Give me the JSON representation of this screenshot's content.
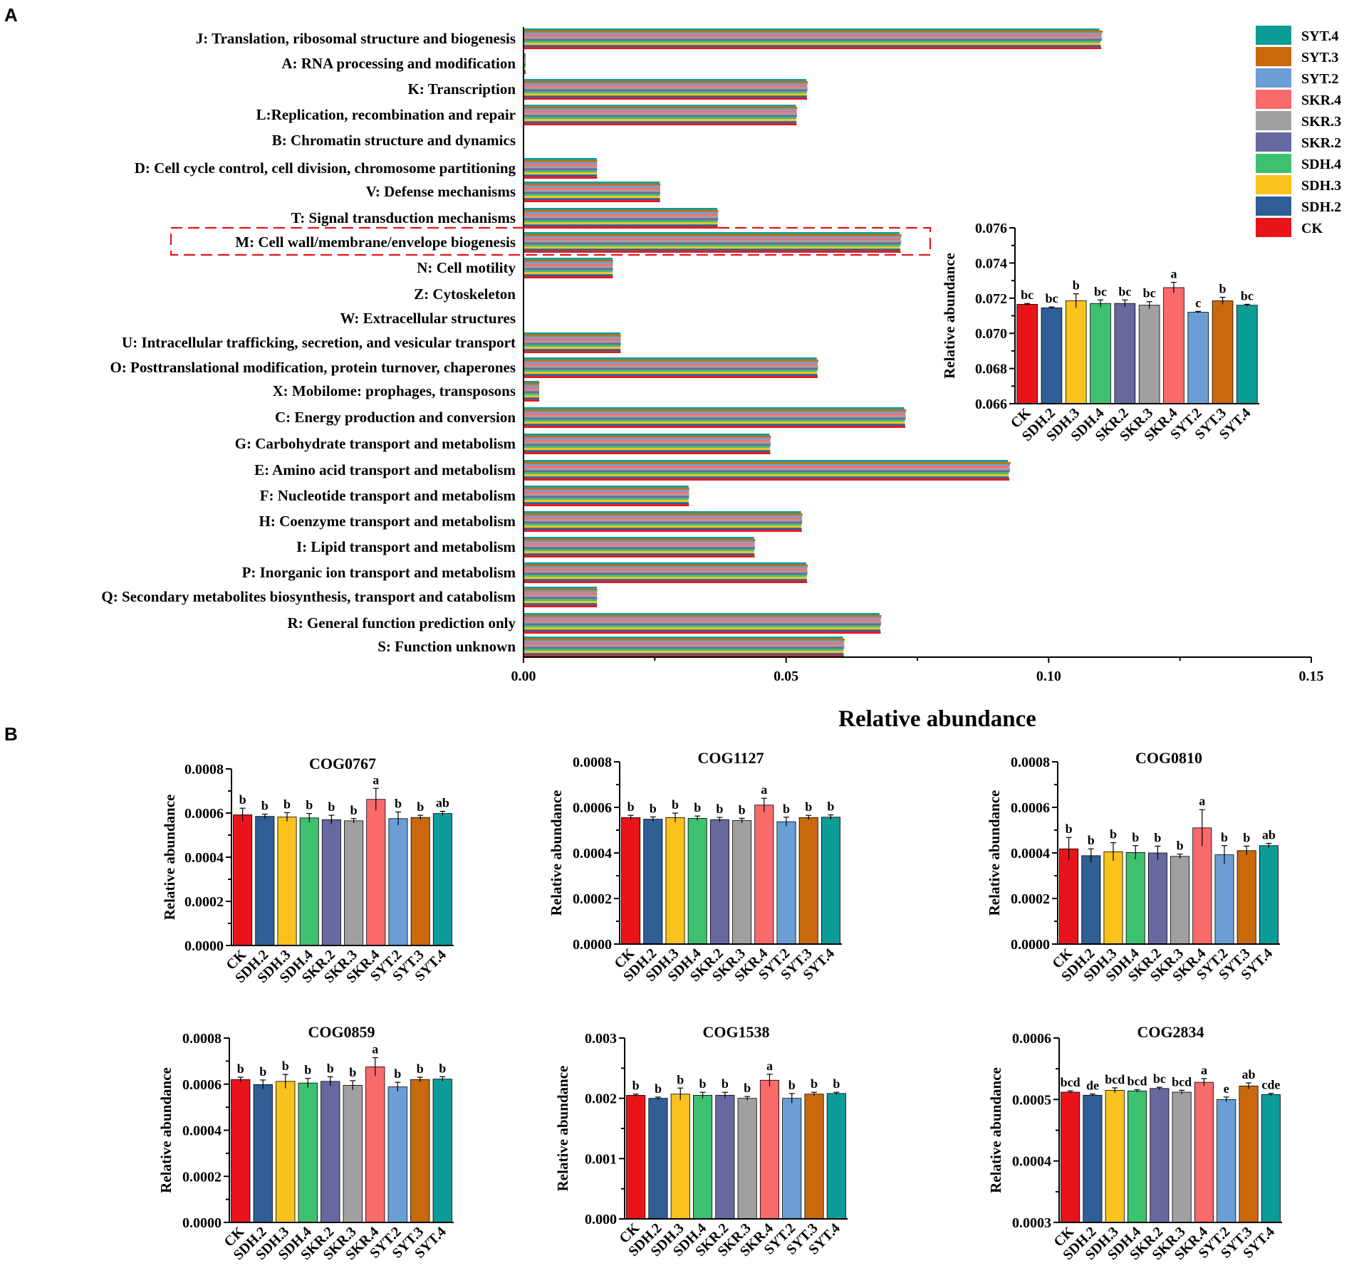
{
  "figure": {
    "label_a": "A",
    "label_b": "B"
  },
  "groups": [
    "CK",
    "SDH.2",
    "SDH.3",
    "SDH.4",
    "SKR.2",
    "SKR.3",
    "SKR.4",
    "SYT.2",
    "SYT.3",
    "SYT.4"
  ],
  "colors": {
    "CK": "#e8141a",
    "SDH.2": "#2f5f94",
    "SDH.3": "#f9c21c",
    "SDH.4": "#3ec16f",
    "SKR.2": "#6868a0",
    "SKR.3": "#a0a0a0",
    "SKR.4": "#f96a6a",
    "SYT.2": "#6a9ed4",
    "SYT.3": "#c9690c",
    "SYT.4": "#0c9c98"
  },
  "legend": [
    "SYT.4",
    "SYT.3",
    "SYT.2",
    "SKR.4",
    "SKR.3",
    "SKR.2",
    "SDH.4",
    "SDH.3",
    "SDH.2",
    "CK"
  ],
  "chart_data": [
    {
      "id": "panelA-main",
      "type": "bar",
      "orientation": "horizontal",
      "xlabel": "Relative abundance",
      "xlim": [
        0,
        0.15
      ],
      "xticks": [
        "0.00",
        "0.05",
        "0.10",
        "0.15"
      ],
      "highlighted_category": "M: Cell wall/membrane/envelope biogenesis",
      "categories": [
        "J: Translation, ribosomal structure and biogenesis",
        "A: RNA processing and modification",
        "K: Transcription",
        "L:Replication, recombination and repair",
        "B: Chromatin structure and dynamics",
        "D: Cell cycle control, cell division, chromosome partitioning",
        "V: Defense mechanisms",
        "T: Signal transduction mechanisms",
        "M: Cell wall/membrane/envelope biogenesis",
        "N: Cell motility",
        "Z: Cytoskeleton",
        "W: Extracellular structures",
        "U: Intracellular trafficking, secretion, and vesicular transport",
        "O: Posttranslational modification, protein turnover, chaperones",
        "X: Mobilome: prophages, transposons",
        "C: Energy production and conversion",
        "G: Carbohydrate transport and metabolism",
        "E: Amino acid transport and metabolism",
        "F: Nucleotide transport and metabolism",
        "H: Coenzyme transport and metabolism",
        "I: Lipid transport and metabolism",
        "P: Inorganic ion transport and metabolism",
        "Q: Secondary metabolites biosynthesis, transport and catabolism",
        "R: General function prediction only",
        "S: Function unknown"
      ],
      "base_values": [
        0.11,
        0.0004,
        0.054,
        0.052,
        0.0,
        0.014,
        0.026,
        0.037,
        0.0718,
        0.017,
        0.0,
        0.0,
        0.0185,
        0.056,
        0.003,
        0.0727,
        0.047,
        0.0925,
        0.0315,
        0.053,
        0.044,
        0.054,
        0.014,
        0.068,
        0.061
      ]
    },
    {
      "id": "panelA-inset",
      "type": "bar",
      "categories": [
        "CK",
        "SDH.2",
        "SDH.3",
        "SDH.4",
        "SKR.2",
        "SKR.3",
        "SKR.4",
        "SYT.2",
        "SYT.3",
        "SYT.4"
      ],
      "values": [
        0.07165,
        0.07145,
        0.07185,
        0.0717,
        0.0717,
        0.0716,
        0.0726,
        0.0712,
        0.07185,
        0.0716
      ],
      "errors": [
        5e-05,
        5e-05,
        0.0004,
        0.0002,
        0.0002,
        0.0002,
        0.0003,
        5e-05,
        0.0002,
        5e-05
      ],
      "labels": [
        "bc",
        "bc",
        "b",
        "bc",
        "bc",
        "bc",
        "a",
        "c",
        "b",
        "bc"
      ],
      "ylabel": "Relative abundance",
      "ylim": [
        0.066,
        0.076
      ],
      "yticks": [
        "0.066",
        "0.068",
        "0.070",
        "0.072",
        "0.074",
        "0.076"
      ]
    },
    {
      "id": "COG0767",
      "type": "bar",
      "title": "COG0767",
      "categories": [
        "CK",
        "SDH.2",
        "SDH.3",
        "SDH.4",
        "SKR.2",
        "SKR.3",
        "SKR.4",
        "SYT.2",
        "SYT.3",
        "SYT.4"
      ],
      "values": [
        0.000592,
        0.000585,
        0.000582,
        0.000578,
        0.00057,
        0.000565,
        0.000662,
        0.000575,
        0.00058,
        0.000598
      ],
      "errors": [
        3e-05,
        1e-05,
        2e-05,
        2e-05,
        2e-05,
        1e-05,
        5e-05,
        3e-05,
        1e-05,
        1e-05
      ],
      "labels": [
        "b",
        "b",
        "b",
        "b",
        "b",
        "b",
        "a",
        "b",
        "b",
        "ab"
      ],
      "ylabel": "Relative abundance",
      "ylim": [
        0,
        0.0008
      ],
      "yticks": [
        "0.0000",
        "0.0002",
        "0.0004",
        "0.0006",
        "0.0008"
      ]
    },
    {
      "id": "COG1127",
      "type": "bar",
      "title": "COG1127",
      "categories": [
        "CK",
        "SDH.2",
        "SDH.3",
        "SDH.4",
        "SKR.2",
        "SKR.3",
        "SKR.4",
        "SYT.2",
        "SYT.3",
        "SYT.4"
      ],
      "values": [
        0.000555,
        0.000548,
        0.000555,
        0.000552,
        0.000546,
        0.000542,
        0.00061,
        0.000537,
        0.000555,
        0.000557
      ],
      "errors": [
        1e-05,
        1e-05,
        2e-05,
        1e-05,
        1e-05,
        1e-05,
        3e-05,
        2e-05,
        1e-05,
        1e-05
      ],
      "labels": [
        "b",
        "b",
        "b",
        "b",
        "b",
        "b",
        "a",
        "b",
        "b",
        "b"
      ],
      "ylabel": "Relative abundance",
      "ylim": [
        0,
        0.0008
      ],
      "yticks": [
        "0.0000",
        "0.0002",
        "0.0004",
        "0.0006",
        "0.0008"
      ]
    },
    {
      "id": "COG0810",
      "type": "bar",
      "title": "COG0810",
      "categories": [
        "CK",
        "SDH.2",
        "SDH.3",
        "SDH.4",
        "SKR.2",
        "SKR.3",
        "SKR.4",
        "SYT.2",
        "SYT.3",
        "SYT.4"
      ],
      "values": [
        0.000418,
        0.000388,
        0.000405,
        0.000402,
        0.0004,
        0.000385,
        0.00051,
        0.000392,
        0.00041,
        0.000432
      ],
      "errors": [
        5e-05,
        3e-05,
        4e-05,
        3e-05,
        3e-05,
        1e-05,
        8e-05,
        4e-05,
        2e-05,
        1e-05
      ],
      "labels": [
        "b",
        "b",
        "b",
        "b",
        "b",
        "b",
        "a",
        "b",
        "b",
        "ab"
      ],
      "ylabel": "Relative abundance",
      "ylim": [
        0,
        0.0008
      ],
      "yticks": [
        "0.0000",
        "0.0002",
        "0.0004",
        "0.0006",
        "0.0008"
      ]
    },
    {
      "id": "COG0859",
      "type": "bar",
      "title": "COG0859",
      "categories": [
        "CK",
        "SDH.2",
        "SDH.3",
        "SDH.4",
        "SKR.2",
        "SKR.3",
        "SKR.4",
        "SYT.2",
        "SYT.3",
        "SYT.4"
      ],
      "values": [
        0.00062,
        0.000598,
        0.000612,
        0.000605,
        0.000612,
        0.000595,
        0.000675,
        0.000588,
        0.00062,
        0.000622
      ],
      "errors": [
        1e-05,
        2e-05,
        3e-05,
        2e-05,
        2e-05,
        2e-05,
        4e-05,
        2e-05,
        1e-05,
        1e-05
      ],
      "labels": [
        "b",
        "b",
        "b",
        "b",
        "b",
        "b",
        "a",
        "b",
        "b",
        "b"
      ],
      "ylabel": "Relative abundance",
      "ylim": [
        0,
        0.0008
      ],
      "yticks": [
        "0.0000",
        "0.0002",
        "0.0004",
        "0.0006",
        "0.0008"
      ]
    },
    {
      "id": "COG1538",
      "type": "bar",
      "title": "COG1538",
      "categories": [
        "CK",
        "SDH.2",
        "SDH.3",
        "SDH.4",
        "SKR.2",
        "SKR.3",
        "SKR.4",
        "SYT.2",
        "SYT.3",
        "SYT.4"
      ],
      "values": [
        0.00205,
        0.002,
        0.00207,
        0.00205,
        0.00205,
        0.002,
        0.0023,
        0.002,
        0.00207,
        0.00208
      ],
      "errors": [
        2e-05,
        2e-05,
        0.0001,
        5e-05,
        5e-05,
        3e-05,
        0.0001,
        8e-05,
        3e-05,
        2e-05
      ],
      "labels": [
        "b",
        "b",
        "b",
        "b",
        "b",
        "b",
        "a",
        "b",
        "b",
        "b"
      ],
      "ylabel": "Relative abundance",
      "ylim": [
        0,
        0.003
      ],
      "yticks": [
        "0.000",
        "0.001",
        "0.002",
        "0.003"
      ]
    },
    {
      "id": "COG2834",
      "type": "bar",
      "title": "COG2834",
      "categories": [
        "CK",
        "SDH.2",
        "SDH.3",
        "SDH.4",
        "SKR.2",
        "SKR.3",
        "SKR.4",
        "SYT.2",
        "SYT.3",
        "SYT.4"
      ],
      "values": [
        0.000512,
        0.000507,
        0.000515,
        0.000514,
        0.000518,
        0.000512,
        0.000528,
        0.0005,
        0.000522,
        0.000508
      ],
      "errors": [
        2e-06,
        2e-06,
        4e-06,
        2e-06,
        2e-06,
        3e-06,
        6e-06,
        4e-06,
        5e-06,
        2e-06
      ],
      "labels": [
        "bcd",
        "de",
        "bcd",
        "bcd",
        "bc",
        "bcd",
        "a",
        "e",
        "ab",
        "cde"
      ],
      "ylabel": "Relative abundance",
      "ylim": [
        0.0003,
        0.0006
      ],
      "yticks": [
        "0.0003",
        "0.0004",
        "0.0005",
        "0.0006"
      ]
    }
  ]
}
